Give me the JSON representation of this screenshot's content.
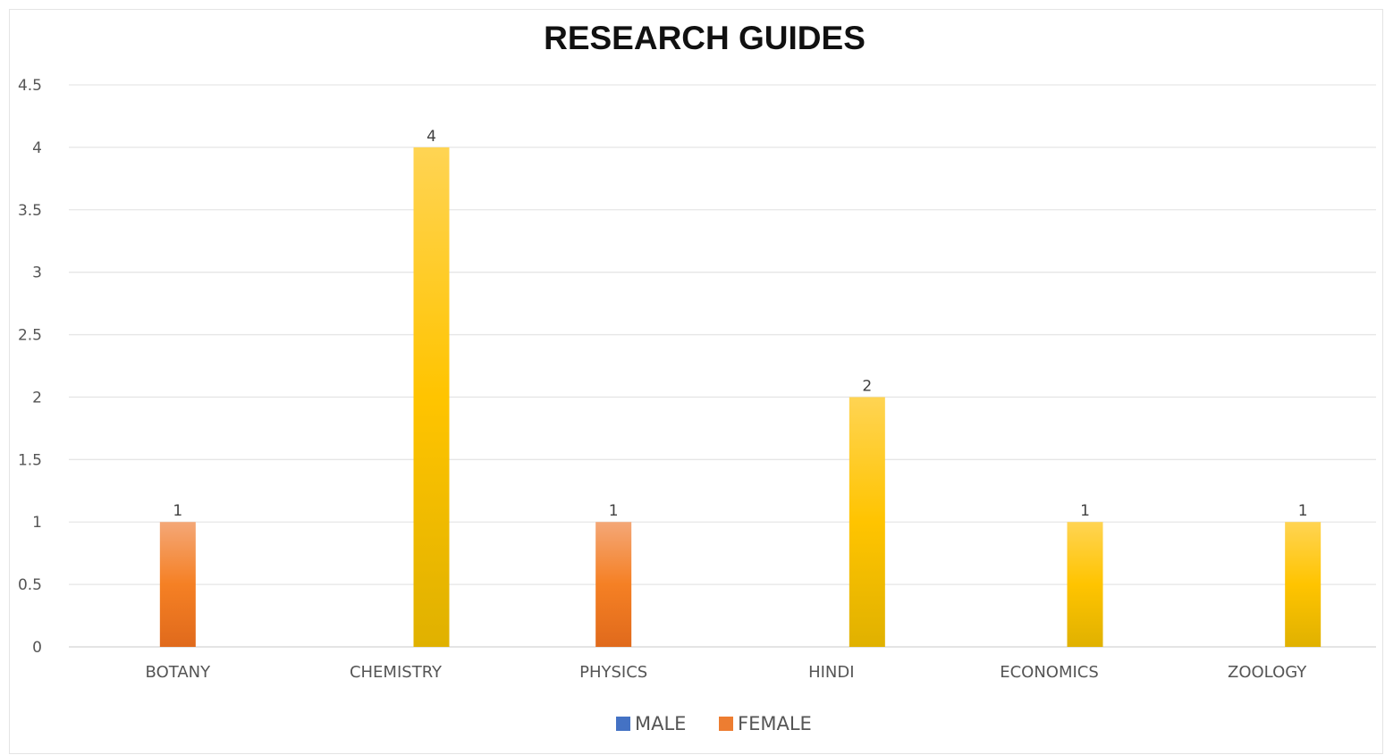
{
  "chart_data": {
    "type": "bar",
    "title": "RESEARCH GUIDES",
    "xlabel": "",
    "ylabel": "",
    "ylim": [
      0,
      4.5
    ],
    "yticks": [
      "0",
      "0.5",
      "1",
      "1.5",
      "2",
      "2.5",
      "3",
      "3.5",
      "4",
      "4.5"
    ],
    "grid": true,
    "legend_position": "bottom",
    "categories": [
      "BOTANY",
      "CHEMISTRY",
      "PHYSICS",
      "HINDI",
      "ECONOMICS",
      "ZOOLOGY"
    ],
    "series": [
      {
        "name": "MALE",
        "color": "#4472c4",
        "values": [
          0,
          0,
          0,
          0,
          0,
          0
        ]
      },
      {
        "name": "FEMALE",
        "color": "#ed7d31",
        "values": [
          1,
          0,
          1,
          0,
          0,
          0
        ]
      },
      {
        "name": "",
        "color": "#ffc000",
        "values": [
          0,
          4,
          0,
          2,
          1,
          1
        ]
      }
    ],
    "data_labels": [
      "1",
      "4",
      "1",
      "2",
      "1",
      "1"
    ]
  }
}
